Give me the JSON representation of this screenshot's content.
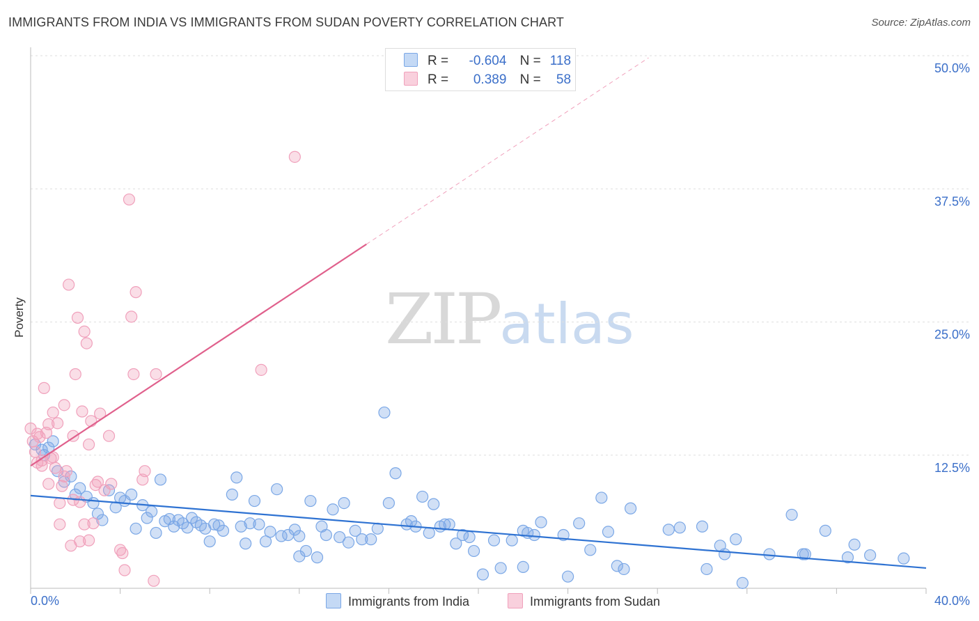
{
  "title": "IMMIGRANTS FROM INDIA VS IMMIGRANTS FROM SUDAN POVERTY CORRELATION CHART",
  "source": "Source: ZipAtlas.com",
  "watermark": {
    "zip": "ZIP",
    "atlas": "atlas"
  },
  "legend": {
    "india": {
      "r_label": "R =",
      "r_value": "-0.604",
      "n_label": "N =",
      "n_value": "118"
    },
    "sudan": {
      "r_label": "R =",
      "r_value": "0.389",
      "n_label": "N =",
      "n_value": "58"
    }
  },
  "colors": {
    "india": "#7aa7e6",
    "india_line": "#2e72d2",
    "sudan": "#f0a0bb",
    "sudan_line": "#e0608c",
    "tick_text": "#3b6fc9"
  },
  "chart_data": {
    "type": "scatter",
    "title": "IMMIGRANTS FROM INDIA VS IMMIGRANTS FROM SUDAN POVERTY CORRELATION CHART",
    "xlabel": "",
    "ylabel": "Poverty",
    "xlim": [
      0,
      40
    ],
    "ylim": [
      0,
      50
    ],
    "x_tick_labels": [
      "0.0%",
      "40.0%"
    ],
    "y_ticks": [
      12.5,
      25.0,
      37.5,
      50.0
    ],
    "y_tick_labels": [
      "12.5%",
      "25.0%",
      "37.5%",
      "50.0%"
    ],
    "grid": true,
    "legend_position": "bottom-center",
    "series": [
      {
        "name": "Immigrants from India",
        "trend": {
          "x": [
            0,
            40
          ],
          "y": [
            8.7,
            1.9
          ]
        },
        "points": [
          [
            0.2,
            13.5
          ],
          [
            0.5,
            13.0
          ],
          [
            0.6,
            12.5
          ],
          [
            0.8,
            13.2
          ],
          [
            1.0,
            13.8
          ],
          [
            1.2,
            11.0
          ],
          [
            1.5,
            10.0
          ],
          [
            1.8,
            10.5
          ],
          [
            2.0,
            8.8
          ],
          [
            2.2,
            9.4
          ],
          [
            2.5,
            8.6
          ],
          [
            2.8,
            8.0
          ],
          [
            3.0,
            7.0
          ],
          [
            3.2,
            6.4
          ],
          [
            3.5,
            9.2
          ],
          [
            3.8,
            7.6
          ],
          [
            4.0,
            8.5
          ],
          [
            4.2,
            8.2
          ],
          [
            4.5,
            8.8
          ],
          [
            4.7,
            5.6
          ],
          [
            5.0,
            7.8
          ],
          [
            5.2,
            6.6
          ],
          [
            5.4,
            7.2
          ],
          [
            5.6,
            5.2
          ],
          [
            5.8,
            10.2
          ],
          [
            6.0,
            6.3
          ],
          [
            6.2,
            6.5
          ],
          [
            6.4,
            5.8
          ],
          [
            6.6,
            6.4
          ],
          [
            6.8,
            6.1
          ],
          [
            7.0,
            5.7
          ],
          [
            7.2,
            6.6
          ],
          [
            7.4,
            6.2
          ],
          [
            7.6,
            5.9
          ],
          [
            7.8,
            5.6
          ],
          [
            8.0,
            4.4
          ],
          [
            8.2,
            6.0
          ],
          [
            8.4,
            5.9
          ],
          [
            8.6,
            5.4
          ],
          [
            9.0,
            8.8
          ],
          [
            9.2,
            10.4
          ],
          [
            9.4,
            5.8
          ],
          [
            9.6,
            4.2
          ],
          [
            9.8,
            6.1
          ],
          [
            10.0,
            8.2
          ],
          [
            10.2,
            6.0
          ],
          [
            10.5,
            4.4
          ],
          [
            10.7,
            5.3
          ],
          [
            11.0,
            9.3
          ],
          [
            11.2,
            4.9
          ],
          [
            11.5,
            5.0
          ],
          [
            11.8,
            5.5
          ],
          [
            12.0,
            4.9
          ],
          [
            12.3,
            3.5
          ],
          [
            12.5,
            8.2
          ],
          [
            12.8,
            2.9
          ],
          [
            13.0,
            5.8
          ],
          [
            13.2,
            5.0
          ],
          [
            13.5,
            7.4
          ],
          [
            13.8,
            4.8
          ],
          [
            14.0,
            8.0
          ],
          [
            14.2,
            4.3
          ],
          [
            14.5,
            5.4
          ],
          [
            14.8,
            4.6
          ],
          [
            15.2,
            4.6
          ],
          [
            15.5,
            5.6
          ],
          [
            15.8,
            16.5
          ],
          [
            16.0,
            8.0
          ],
          [
            16.3,
            10.8
          ],
          [
            16.8,
            6.0
          ],
          [
            17.0,
            6.3
          ],
          [
            17.2,
            5.8
          ],
          [
            17.5,
            8.6
          ],
          [
            17.8,
            5.2
          ],
          [
            18.0,
            7.9
          ],
          [
            18.3,
            5.8
          ],
          [
            18.7,
            6.0
          ],
          [
            19.0,
            4.2
          ],
          [
            19.3,
            5.0
          ],
          [
            19.6,
            4.8
          ],
          [
            19.8,
            3.5
          ],
          [
            20.2,
            1.3
          ],
          [
            20.7,
            4.5
          ],
          [
            21.0,
            1.9
          ],
          [
            21.5,
            4.5
          ],
          [
            22.0,
            5.4
          ],
          [
            22.2,
            5.2
          ],
          [
            22.0,
            2.0
          ],
          [
            22.8,
            6.2
          ],
          [
            23.8,
            5.0
          ],
          [
            24.0,
            1.1
          ],
          [
            24.5,
            6.1
          ],
          [
            25.0,
            3.6
          ],
          [
            25.5,
            8.5
          ],
          [
            25.8,
            5.3
          ],
          [
            26.2,
            2.1
          ],
          [
            26.5,
            1.8
          ],
          [
            26.8,
            7.5
          ],
          [
            28.5,
            5.5
          ],
          [
            29.0,
            5.7
          ],
          [
            30.0,
            5.8
          ],
          [
            30.2,
            1.8
          ],
          [
            30.8,
            4.0
          ],
          [
            31.0,
            3.2
          ],
          [
            31.5,
            4.6
          ],
          [
            31.8,
            0.5
          ],
          [
            33.0,
            3.2
          ],
          [
            34.0,
            6.9
          ],
          [
            34.5,
            3.2
          ],
          [
            34.6,
            3.2
          ],
          [
            35.5,
            5.4
          ],
          [
            36.5,
            2.9
          ],
          [
            36.8,
            4.1
          ],
          [
            37.5,
            3.1
          ],
          [
            39.0,
            2.8
          ],
          [
            22.5,
            5.0
          ],
          [
            18.5,
            6.0
          ],
          [
            12.0,
            3.0
          ]
        ]
      },
      {
        "name": "Immigrants from Sudan",
        "trend": {
          "x": [
            0,
            15
          ],
          "y": [
            11.5,
            32.3
          ]
        },
        "trend_extension": {
          "x": [
            15,
            27.6
          ],
          "y": [
            32.3,
            49.8
          ]
        },
        "points": [
          [
            0.0,
            15.0
          ],
          [
            0.1,
            13.8
          ],
          [
            0.2,
            12.8
          ],
          [
            0.3,
            11.8
          ],
          [
            0.4,
            14.2
          ],
          [
            0.5,
            12.0
          ],
          [
            0.6,
            18.8
          ],
          [
            0.7,
            14.6
          ],
          [
            0.8,
            15.4
          ],
          [
            0.9,
            12.2
          ],
          [
            1.0,
            16.5
          ],
          [
            1.1,
            11.3
          ],
          [
            1.2,
            15.5
          ],
          [
            1.3,
            8.0
          ],
          [
            1.4,
            9.6
          ],
          [
            1.5,
            17.2
          ],
          [
            1.6,
            11.0
          ],
          [
            1.7,
            28.5
          ],
          [
            1.8,
            4.0
          ],
          [
            1.9,
            14.3
          ],
          [
            2.0,
            20.1
          ],
          [
            2.1,
            25.4
          ],
          [
            2.2,
            8.1
          ],
          [
            2.3,
            16.6
          ],
          [
            2.4,
            24.1
          ],
          [
            2.5,
            23.0
          ],
          [
            2.6,
            13.5
          ],
          [
            2.7,
            15.7
          ],
          [
            2.8,
            6.1
          ],
          [
            2.9,
            9.7
          ],
          [
            3.0,
            10.0
          ],
          [
            3.1,
            16.4
          ],
          [
            3.5,
            14.3
          ],
          [
            3.6,
            9.8
          ],
          [
            4.0,
            3.6
          ],
          [
            4.1,
            3.3
          ],
          [
            4.2,
            1.7
          ],
          [
            4.4,
            36.5
          ],
          [
            4.5,
            25.5
          ],
          [
            4.6,
            20.1
          ],
          [
            4.7,
            27.8
          ],
          [
            5.0,
            10.2
          ],
          [
            5.1,
            11.0
          ],
          [
            5.5,
            0.7
          ],
          [
            5.6,
            20.1
          ],
          [
            10.3,
            20.5
          ],
          [
            11.8,
            40.5
          ],
          [
            2.2,
            4.4
          ],
          [
            1.3,
            6.0
          ],
          [
            0.8,
            9.8
          ],
          [
            2.4,
            6.0
          ],
          [
            3.3,
            9.2
          ],
          [
            1.0,
            12.3
          ],
          [
            0.3,
            14.5
          ],
          [
            1.9,
            8.3
          ],
          [
            2.6,
            4.5
          ],
          [
            0.5,
            11.5
          ],
          [
            1.5,
            10.5
          ]
        ]
      }
    ]
  },
  "bottom_legend": {
    "india_label": "Immigrants from India",
    "sudan_label": "Immigrants from Sudan"
  }
}
